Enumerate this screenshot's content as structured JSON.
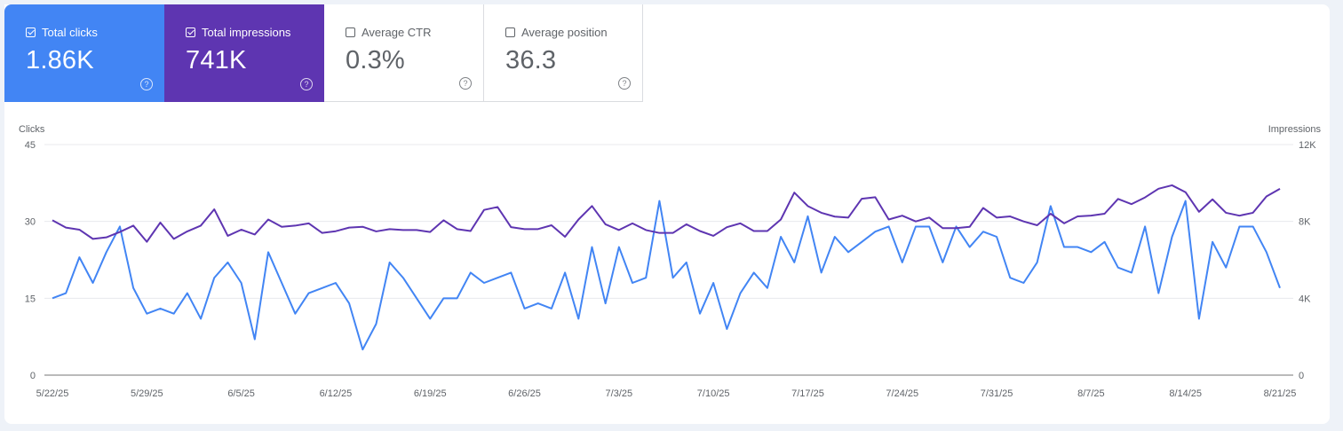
{
  "metrics": [
    {
      "label": "Total clicks",
      "value": "1.86K",
      "checked": true,
      "color": "#4285f4"
    },
    {
      "label": "Total impressions",
      "value": "741K",
      "checked": true,
      "color": "#5e35b1"
    },
    {
      "label": "Average CTR",
      "value": "0.3%",
      "checked": false
    },
    {
      "label": "Average position",
      "value": "36.3",
      "checked": false
    }
  ],
  "help_icon": "?",
  "chart_data": {
    "type": "line",
    "left_axis": {
      "label": "Clicks",
      "ticks": [
        "0",
        "15",
        "30",
        "45"
      ],
      "range": [
        0,
        45
      ]
    },
    "right_axis": {
      "label": "Impressions",
      "ticks": [
        "0",
        "4K",
        "8K",
        "12K"
      ],
      "range": [
        0,
        12000
      ]
    },
    "x_tick_labels": [
      "5/22/25",
      "5/29/25",
      "6/5/25",
      "6/12/25",
      "6/19/25",
      "6/26/25",
      "7/3/25",
      "7/10/25",
      "7/17/25",
      "7/24/25",
      "7/31/25",
      "8/7/25",
      "8/14/25",
      "8/21/25"
    ],
    "x": [
      "5/22",
      "5/23",
      "5/24",
      "5/25",
      "5/26",
      "5/27",
      "5/28",
      "5/29",
      "5/30",
      "5/31",
      "6/1",
      "6/2",
      "6/3",
      "6/4",
      "6/5",
      "6/6",
      "6/7",
      "6/8",
      "6/9",
      "6/10",
      "6/11",
      "6/12",
      "6/13",
      "6/14",
      "6/15",
      "6/16",
      "6/17",
      "6/18",
      "6/19",
      "6/20",
      "6/21",
      "6/22",
      "6/23",
      "6/24",
      "6/25",
      "6/26",
      "6/27",
      "6/28",
      "6/29",
      "6/30",
      "7/1",
      "7/2",
      "7/3",
      "7/4",
      "7/5",
      "7/6",
      "7/7",
      "7/8",
      "7/9",
      "7/10",
      "7/11",
      "7/12",
      "7/13",
      "7/14",
      "7/15",
      "7/16",
      "7/17",
      "7/18",
      "7/19",
      "7/20",
      "7/21",
      "7/22",
      "7/23",
      "7/24",
      "7/25",
      "7/26",
      "7/27",
      "7/28",
      "7/29",
      "7/30",
      "7/31",
      "8/1",
      "8/2",
      "8/3",
      "8/4",
      "8/5",
      "8/6",
      "8/7",
      "8/8",
      "8/9",
      "8/10",
      "8/11",
      "8/12",
      "8/13",
      "8/14",
      "8/15",
      "8/16",
      "8/17",
      "8/18",
      "8/19",
      "8/20",
      "8/21"
    ],
    "grid": true,
    "series": [
      {
        "name": "Clicks",
        "axis": "left",
        "color": "#4285f4",
        "values": [
          15,
          16,
          23,
          18,
          24,
          29,
          17,
          12,
          13,
          12,
          16,
          11,
          19,
          22,
          18,
          7,
          24,
          18,
          12,
          16,
          17,
          18,
          14,
          5,
          10,
          22,
          19,
          15,
          11,
          15,
          15,
          20,
          18,
          19,
          20,
          13,
          14,
          13,
          20,
          11,
          25,
          14,
          25,
          18,
          19,
          34,
          19,
          22,
          12,
          18,
          9,
          16,
          20,
          17,
          27,
          22,
          31,
          20,
          27,
          24,
          26,
          28,
          29,
          22,
          29,
          29,
          22,
          29,
          25,
          28,
          27,
          19,
          18,
          22,
          33,
          25,
          25,
          24,
          26,
          21,
          20,
          29,
          16,
          27,
          34,
          11,
          26,
          21,
          29,
          29,
          24,
          17
        ]
      },
      {
        "name": "Impressions",
        "axis": "right",
        "color": "#5e35b1",
        "values": [
          8060,
          7680,
          7570,
          7090,
          7170,
          7450,
          7780,
          6940,
          7940,
          7090,
          7480,
          7780,
          8630,
          7250,
          7570,
          7320,
          8100,
          7720,
          7780,
          7900,
          7400,
          7490,
          7680,
          7720,
          7480,
          7600,
          7550,
          7550,
          7450,
          8060,
          7600,
          7500,
          8600,
          8750,
          7700,
          7600,
          7600,
          7800,
          7200,
          8100,
          8800,
          7850,
          7550,
          7900,
          7550,
          7400,
          7400,
          7850,
          7500,
          7250,
          7700,
          7900,
          7500,
          7500,
          8100,
          9500,
          8800,
          8450,
          8250,
          8200,
          9180,
          9260,
          8100,
          8300,
          8000,
          8200,
          7650,
          7650,
          7720,
          8700,
          8200,
          8260,
          8000,
          7800,
          8400,
          7900,
          8260,
          8300,
          8400,
          9170,
          8900,
          9250,
          9700,
          9880,
          9520,
          8500,
          9150,
          8450,
          8300,
          8450,
          9300,
          9700
        ]
      }
    ]
  }
}
